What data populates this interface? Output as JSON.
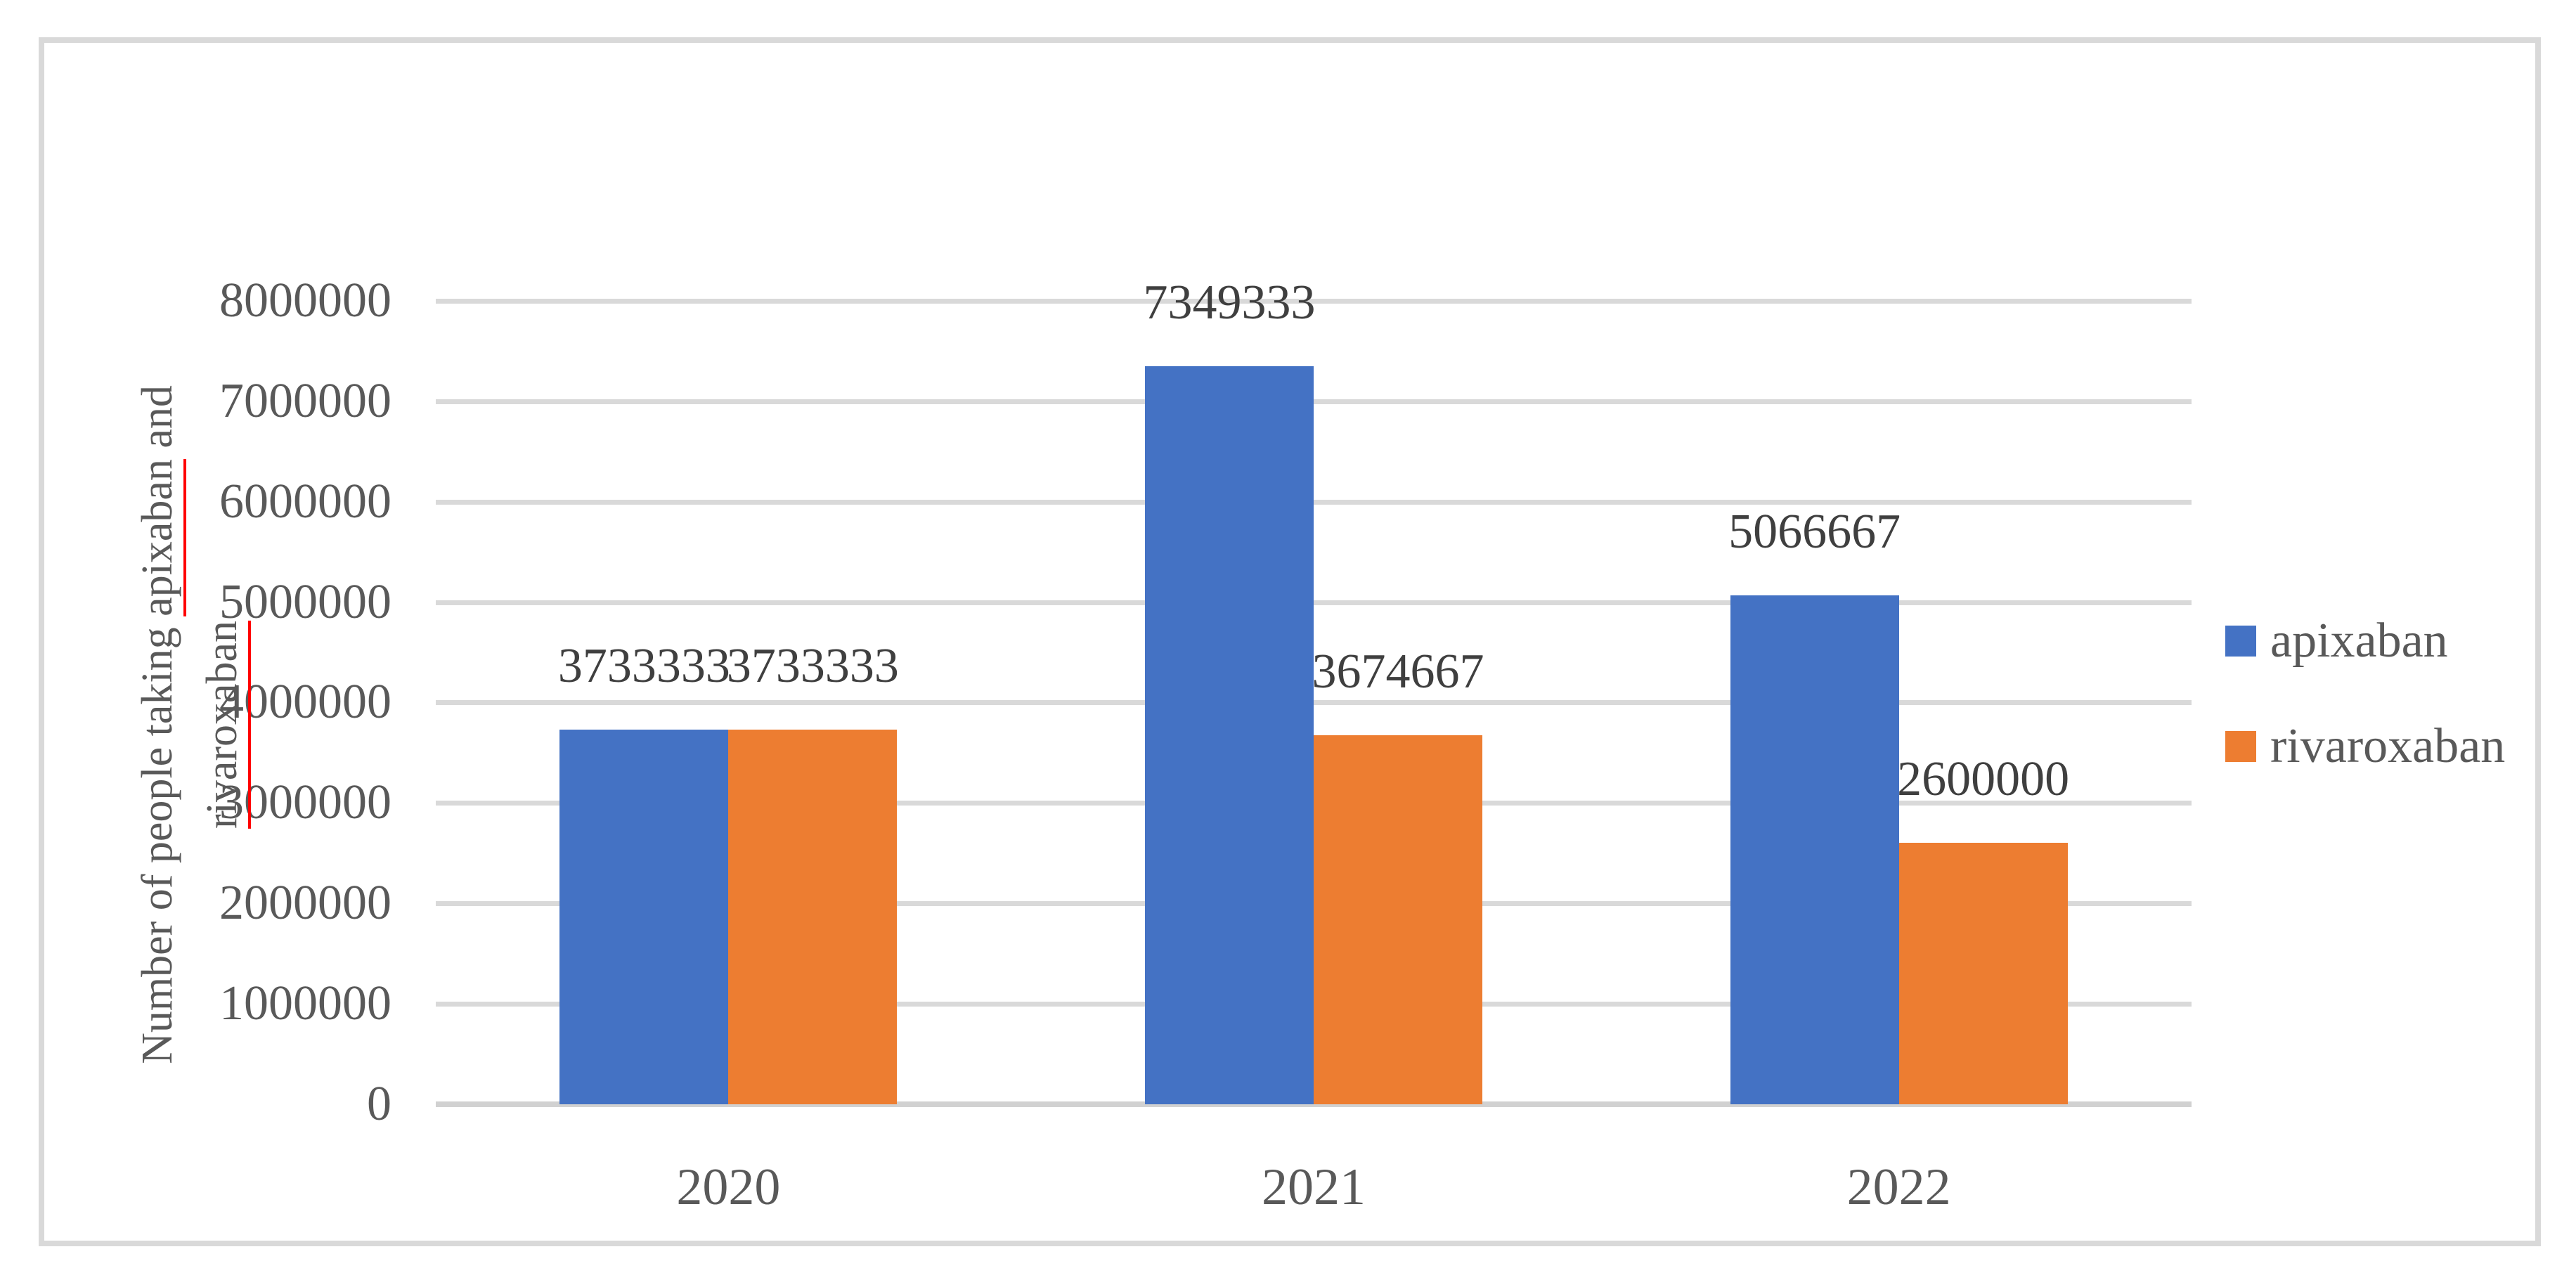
{
  "colors": {
    "apixaban": "#4472C4",
    "rivaroxaban": "#ED7D31",
    "gridline": "#D9D9D9",
    "axis_line": "#D1D1D1",
    "frame_border": "#D9D9D9",
    "axis_text": "#595959",
    "data_label_text": "#3F3F3F",
    "misspell_underline": "#FF0000"
  },
  "y_axis": {
    "title_lines": [
      {
        "parts": [
          {
            "text": "Number of people taking ",
            "misspelled": false
          },
          {
            "text": "apixaban",
            "misspelled": true
          },
          {
            "text": " and",
            "misspelled": false
          }
        ]
      },
      {
        "parts": [
          {
            "text": "rivaroxaban",
            "misspelled": true
          }
        ]
      }
    ],
    "tick_labels": [
      "0",
      "1000000",
      "2000000",
      "3000000",
      "4000000",
      "5000000",
      "6000000",
      "7000000",
      "8000000"
    ],
    "tick_values": [
      0,
      1000000,
      2000000,
      3000000,
      4000000,
      5000000,
      6000000,
      7000000,
      8000000
    ]
  },
  "x_axis": {
    "categories": [
      "2020",
      "2021",
      "2022"
    ]
  },
  "legend": {
    "position": "right",
    "items": [
      {
        "label": "apixaban",
        "color": "#4472C4"
      },
      {
        "label": "rivaroxaban",
        "color": "#ED7D31"
      }
    ]
  },
  "chart_data": {
    "type": "bar",
    "categories": [
      "2020",
      "2021",
      "2022"
    ],
    "series": [
      {
        "name": "apixaban",
        "color": "#4472C4",
        "values": [
          3733333,
          7349333,
          5066667
        ],
        "labels": [
          "3733333",
          "7349333",
          "5066667"
        ]
      },
      {
        "name": "rivaroxaban",
        "color": "#ED7D31",
        "values": [
          3733333,
          3674667,
          2600000
        ],
        "labels": [
          "3733333",
          "3674667",
          "2600000"
        ]
      }
    ],
    "title": "",
    "xlabel": "",
    "ylabel": "Number of people taking apixaban and rivaroxaban",
    "ylim": [
      0,
      8000000
    ],
    "ytick_step": 1000000,
    "grid": true,
    "data_labels": "outside-end",
    "legend_position": "right"
  }
}
